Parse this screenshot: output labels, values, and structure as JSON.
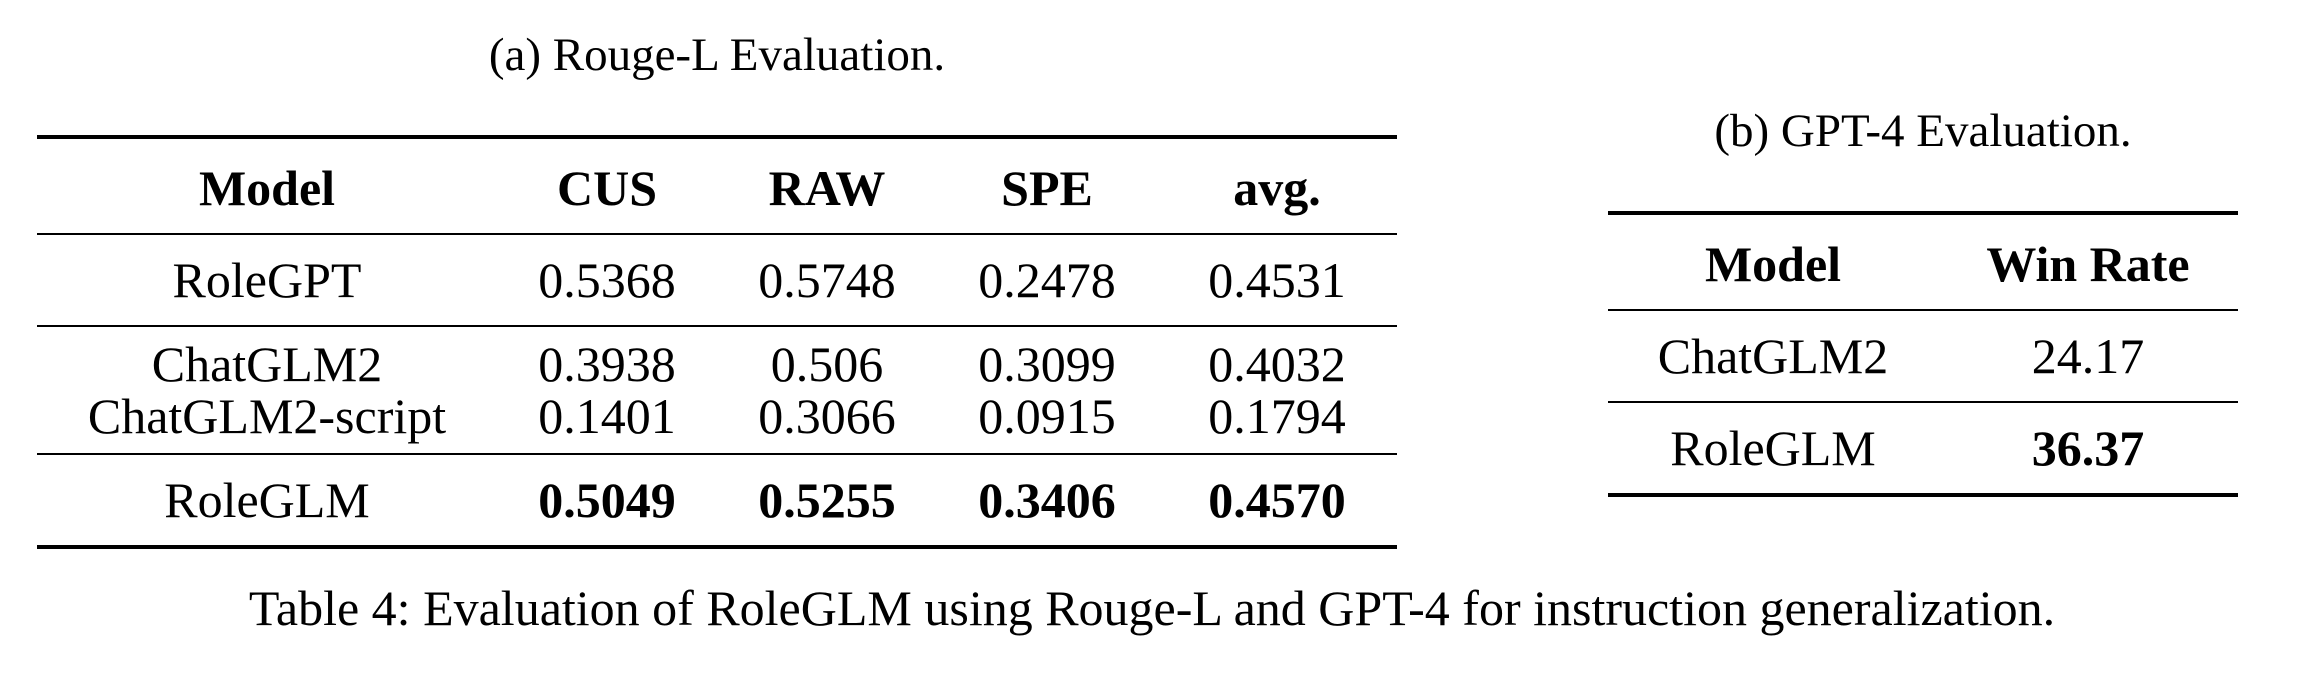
{
  "table_a": {
    "caption": "(a) Rouge-L Evaluation.",
    "headers": [
      "Model",
      "CUS",
      "RAW",
      "SPE",
      "avg."
    ],
    "rows": [
      {
        "model": "RoleGPT",
        "cus": "0.5368",
        "raw": "0.5748",
        "spe": "0.2478",
        "avg": "0.4531"
      },
      {
        "model": "ChatGLM2",
        "cus": "0.3938",
        "raw": "0.506",
        "spe": "0.3099",
        "avg": "0.4032"
      },
      {
        "model": "ChatGLM2-script",
        "cus": "0.1401",
        "raw": "0.3066",
        "spe": "0.0915",
        "avg": "0.1794"
      },
      {
        "model": "RoleGLM",
        "cus": "0.5049",
        "raw": "0.5255",
        "spe": "0.3406",
        "avg": "0.4570"
      }
    ]
  },
  "table_b": {
    "caption": "(b) GPT-4 Evaluation.",
    "headers": [
      "Model",
      "Win Rate"
    ],
    "rows": [
      {
        "model": "ChatGLM2",
        "win_rate": "24.17"
      },
      {
        "model": "RoleGLM",
        "win_rate": "36.37"
      }
    ]
  },
  "caption": "Table 4: Evaluation of RoleGLM using Rouge-L and GPT-4 for instruction generalization."
}
